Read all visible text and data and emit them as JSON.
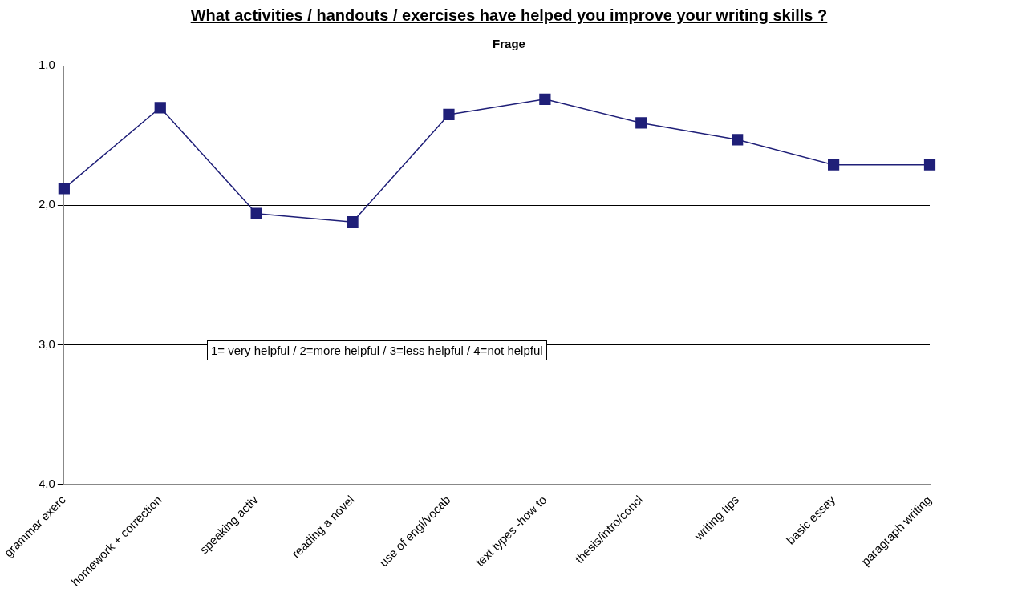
{
  "chart_data": {
    "type": "line",
    "title": "What activities / handouts / exercises have helped you improve your writing skills ?",
    "subtitle": "Frage",
    "categories": [
      "grammar exerc",
      "homework + correction",
      "speaking activ",
      "reading a novel",
      "use of engl/vocab",
      "text types -how to",
      "thesis/intro/concl",
      "writing tips",
      "basic essay",
      "paragraph writing"
    ],
    "series": [
      {
        "color": "#1f1f78",
        "values": [
          1.88,
          1.3,
          2.06,
          2.12,
          1.35,
          1.24,
          1.41,
          1.53,
          1.71,
          1.71
        ]
      }
    ],
    "ylim": [
      4,
      1
    ],
    "yticks": [
      {
        "value": 1,
        "label": "1,0"
      },
      {
        "value": 2,
        "label": "2,0"
      },
      {
        "value": 3,
        "label": "3,0"
      },
      {
        "value": 4,
        "label": "4,0"
      }
    ],
    "grid": "y",
    "legend": false,
    "marker": "square",
    "line_style": "solid",
    "annotations": [
      "1= very helpful / 2=more helpful / 3=less helpful / 4=not helpful"
    ]
  }
}
